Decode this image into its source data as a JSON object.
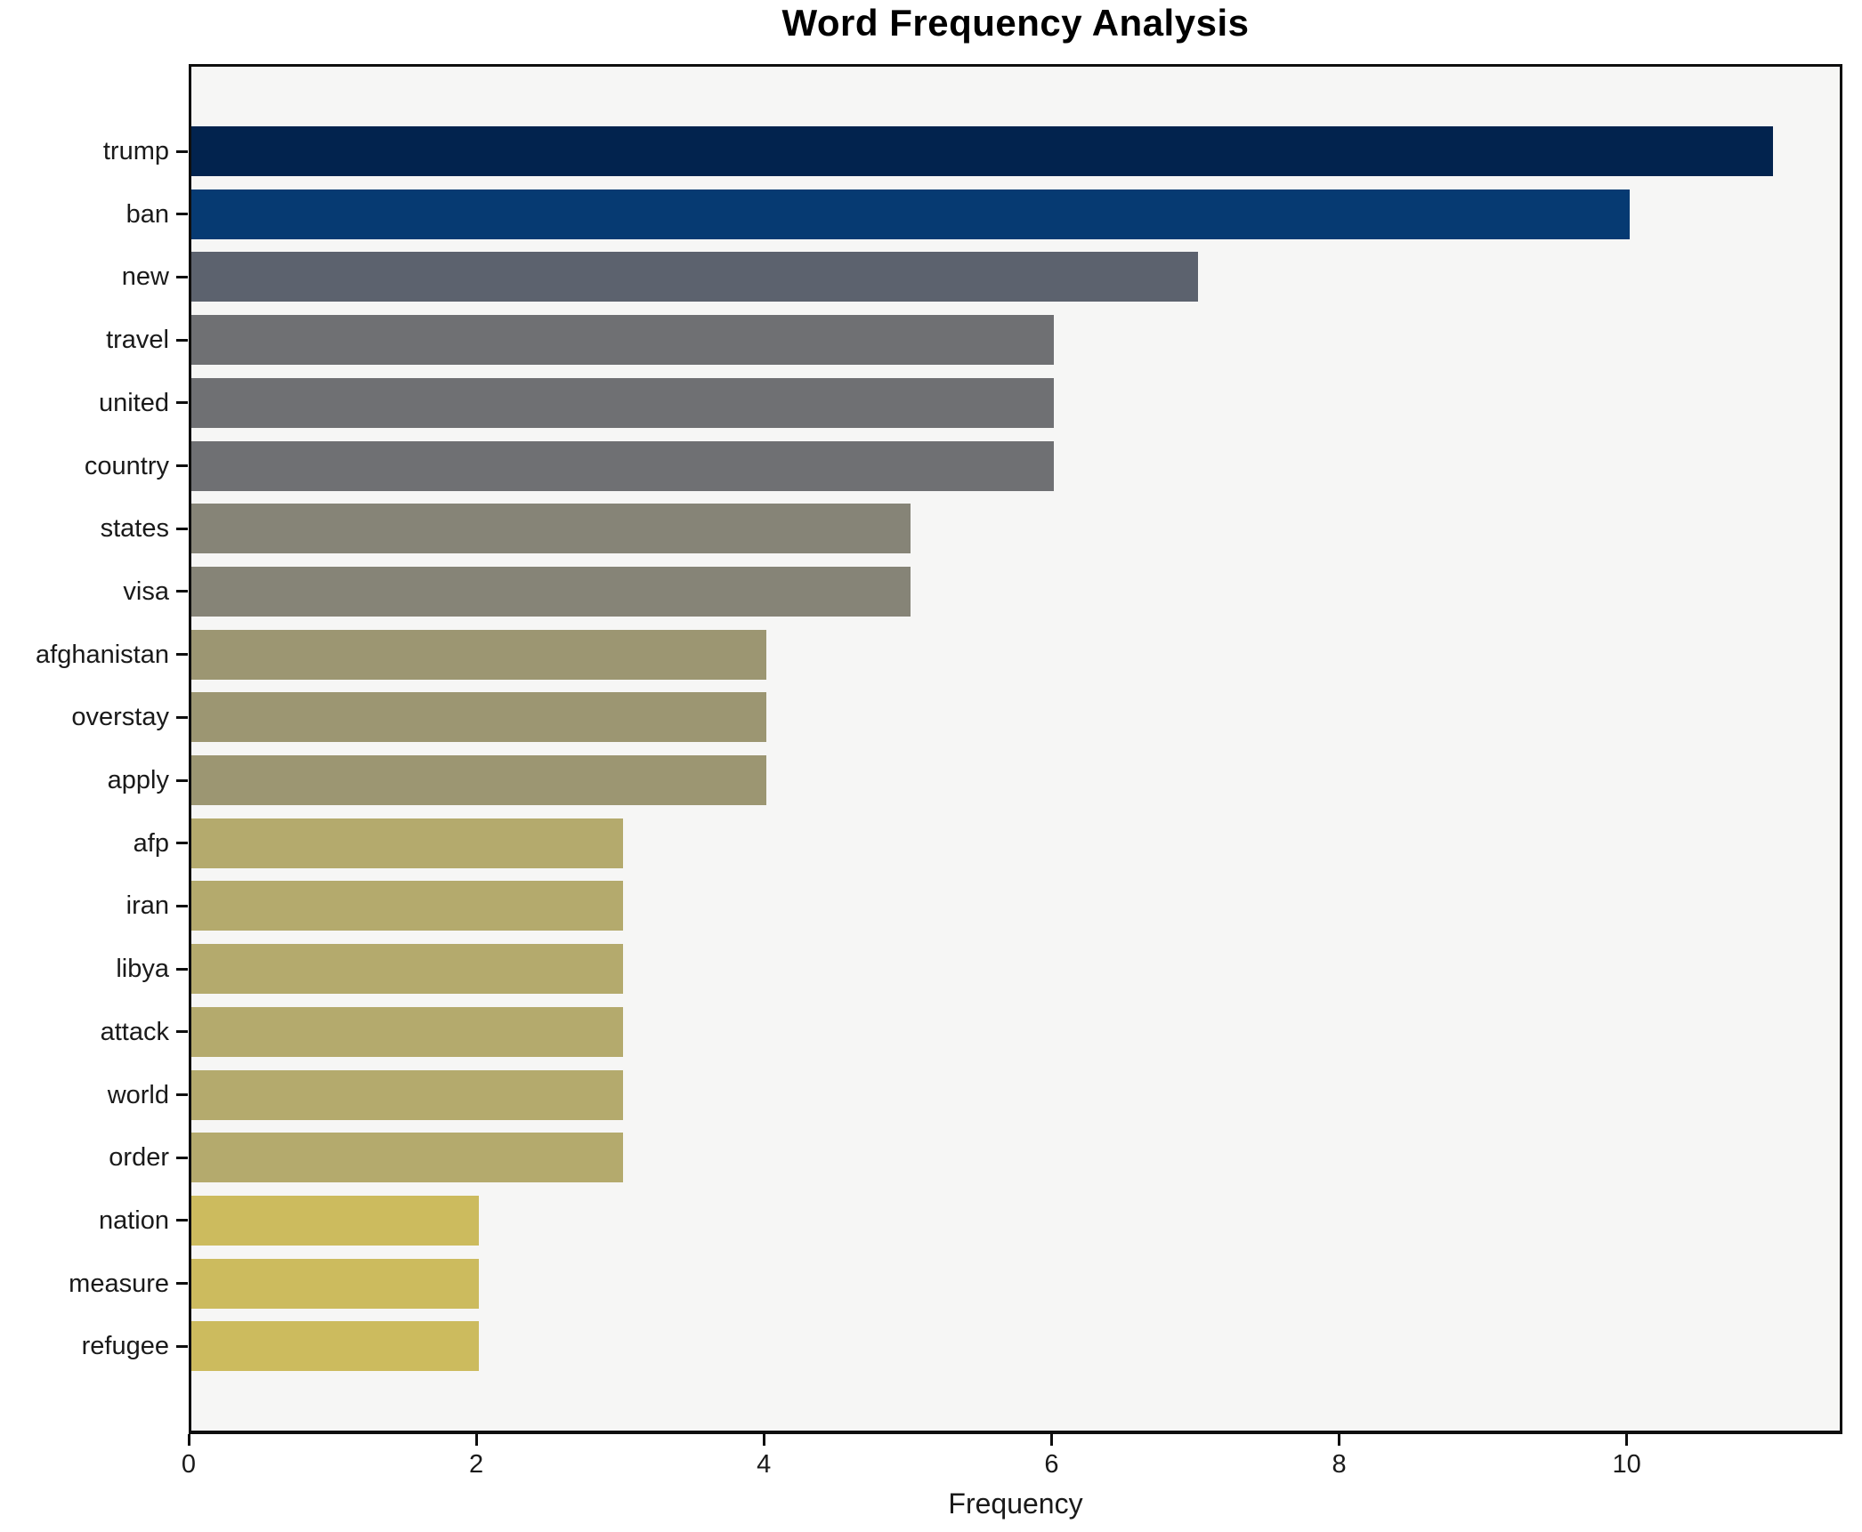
{
  "chart_data": {
    "type": "bar",
    "orientation": "horizontal",
    "title": "Word Frequency Analysis",
    "xlabel": "Frequency",
    "ylabel": "",
    "categories": [
      "trump",
      "ban",
      "new",
      "travel",
      "united",
      "country",
      "states",
      "visa",
      "afghanistan",
      "overstay",
      "apply",
      "afp",
      "iran",
      "libya",
      "attack",
      "world",
      "order",
      "nation",
      "measure",
      "refugee"
    ],
    "values": [
      11,
      10,
      7,
      6,
      6,
      6,
      5,
      5,
      4,
      4,
      4,
      3,
      3,
      3,
      3,
      3,
      3,
      2,
      2,
      2
    ],
    "bar_colors": [
      "#02234e",
      "#063a72",
      "#5c626e",
      "#6f7073",
      "#6f7073",
      "#6f7073",
      "#868477",
      "#868477",
      "#9c9672",
      "#9c9672",
      "#9c9672",
      "#b4aa6d",
      "#b4aa6d",
      "#b4aa6d",
      "#b4aa6d",
      "#b4aa6d",
      "#b4aa6d",
      "#ccbb5e",
      "#ccbb5e",
      "#ccbb5e"
    ],
    "xlim": [
      0,
      11.5
    ],
    "xticks": [
      0,
      2,
      4,
      6,
      8,
      10
    ],
    "grid": false,
    "legend": "none",
    "plot_bg_color": "#f6f6f5",
    "figure_bg_color": "#ffffff",
    "spine_color": "#0e0e0e",
    "text_color": "#1a1a1a"
  }
}
